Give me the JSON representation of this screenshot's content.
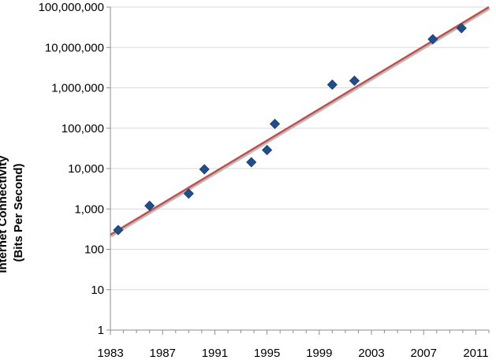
{
  "chart_data": {
    "type": "scatter",
    "title": "",
    "xlabel": "",
    "ylabel_lines": [
      "Internet Connectivity",
      "(Bits Per Second)"
    ],
    "y_scale": "log",
    "ylim": [
      1,
      100000000
    ],
    "xlim": [
      1983,
      2012
    ],
    "x_ticks": [
      {
        "value": 1983,
        "label": "1983"
      },
      {
        "value": 1987,
        "label": "1987"
      },
      {
        "value": 1991,
        "label": "1991"
      },
      {
        "value": 1995,
        "label": "1995"
      },
      {
        "value": 1999,
        "label": "1999"
      },
      {
        "value": 2003,
        "label": "2003"
      },
      {
        "value": 2007,
        "label": "2007"
      },
      {
        "value": 2011,
        "label": "2011"
      }
    ],
    "y_ticks": [
      {
        "value": 1,
        "label": "1"
      },
      {
        "value": 10,
        "label": "10"
      },
      {
        "value": 100,
        "label": "100"
      },
      {
        "value": 1000,
        "label": "1,000"
      },
      {
        "value": 10000,
        "label": "10,000"
      },
      {
        "value": 100000,
        "label": "100,000"
      },
      {
        "value": 1000000,
        "label": "1,000,000"
      },
      {
        "value": 10000000,
        "label": "10,000,000"
      },
      {
        "value": 100000000,
        "label": "100,000,000"
      }
    ],
    "grid": "horizontal",
    "series": [
      {
        "marker": "diamond",
        "color": "#1f4e8c",
        "points": [
          {
            "x": 1983.6,
            "y": 300
          },
          {
            "x": 1986.0,
            "y": 1200
          },
          {
            "x": 1989.0,
            "y": 2400
          },
          {
            "x": 1990.2,
            "y": 9600
          },
          {
            "x": 1993.8,
            "y": 14400
          },
          {
            "x": 1995.0,
            "y": 28800
          },
          {
            "x": 1995.6,
            "y": 128000
          },
          {
            "x": 2000.0,
            "y": 1200000
          },
          {
            "x": 2001.7,
            "y": 1500000
          },
          {
            "x": 2007.7,
            "y": 16000000
          },
          {
            "x": 2009.9,
            "y": 30000000
          }
        ]
      }
    ],
    "trendline": {
      "type": "exponential",
      "color": "#c0504d",
      "from": {
        "x": 1983,
        "y": 230
      },
      "to": {
        "x": 2012,
        "y": 100000000
      }
    }
  }
}
